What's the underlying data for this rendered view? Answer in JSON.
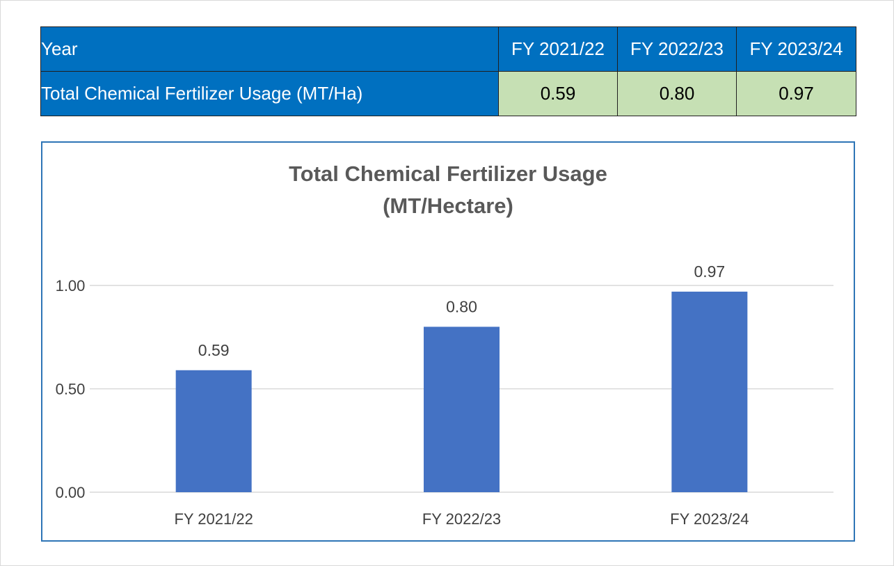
{
  "table": {
    "row_header_label": "Year",
    "columns": [
      "FY 2021/22",
      "FY 2022/23",
      "FY 2023/24"
    ],
    "row_label": "Total Chemical Fertilizer Usage (MT/Ha)",
    "values": [
      "0.59",
      "0.80",
      "0.97"
    ]
  },
  "colors": {
    "header_bg": "#0070c0",
    "value_bg": "#c6e0b4",
    "bar": "#4472c4",
    "chart_border": "#2e75b6",
    "gridline": "#d9d9d9"
  },
  "chart_data": {
    "type": "bar",
    "title": [
      "Total Chemical Fertilizer Usage",
      "(MT/Hectare)"
    ],
    "categories": [
      "FY 2021/22",
      "FY 2022/23",
      "FY 2023/24"
    ],
    "values": [
      0.59,
      0.8,
      0.97
    ],
    "value_labels": [
      "0.59",
      "0.80",
      "0.97"
    ],
    "ylim": [
      0,
      1.0
    ],
    "yticks": [
      0,
      0.5,
      1.0
    ],
    "ytick_labels": [
      "0.00",
      "0.50",
      "1.00"
    ],
    "grid": true,
    "legend": "none",
    "xlabel": "",
    "ylabel": ""
  }
}
